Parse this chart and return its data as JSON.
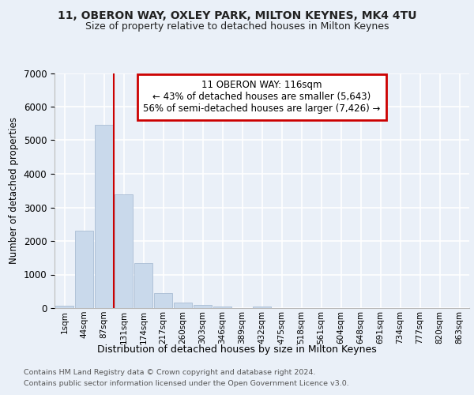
{
  "title_line1": "11, OBERON WAY, OXLEY PARK, MILTON KEYNES, MK4 4TU",
  "title_line2": "Size of property relative to detached houses in Milton Keynes",
  "xlabel": "Distribution of detached houses by size in Milton Keynes",
  "ylabel": "Number of detached properties",
  "footer_line1": "Contains HM Land Registry data © Crown copyright and database right 2024.",
  "footer_line2": "Contains public sector information licensed under the Open Government Licence v3.0.",
  "annotation_line1": "11 OBERON WAY: 116sqm",
  "annotation_line2": "← 43% of detached houses are smaller (5,643)",
  "annotation_line3": "56% of semi-detached houses are larger (7,426) →",
  "bar_color": "#c9d9eb",
  "bar_edge_color": "#aabdd4",
  "background_color": "#eaf0f8",
  "grid_color": "#ffffff",
  "annotation_box_color": "#ffffff",
  "annotation_box_edge": "#cc0000",
  "marker_line_color": "#cc0000",
  "categories": [
    "1sqm",
    "44sqm",
    "87sqm",
    "131sqm",
    "174sqm",
    "217sqm",
    "260sqm",
    "303sqm",
    "346sqm",
    "389sqm",
    "432sqm",
    "475sqm",
    "518sqm",
    "561sqm",
    "604sqm",
    "648sqm",
    "691sqm",
    "734sqm",
    "777sqm",
    "820sqm",
    "863sqm"
  ],
  "values": [
    75,
    2300,
    5450,
    3400,
    1350,
    450,
    175,
    100,
    50,
    10,
    50,
    0,
    0,
    0,
    0,
    0,
    0,
    0,
    0,
    0,
    0
  ],
  "ylim": [
    0,
    7000
  ],
  "yticks": [
    0,
    1000,
    2000,
    3000,
    4000,
    5000,
    6000,
    7000
  ],
  "marker_bar_index": 3,
  "figsize": [
    6.0,
    5.0
  ],
  "dpi": 100
}
